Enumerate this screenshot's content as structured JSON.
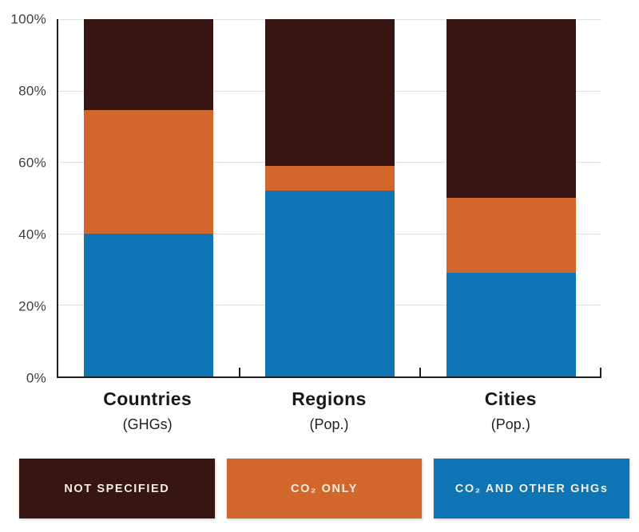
{
  "chart_data": {
    "type": "bar",
    "stacked": true,
    "title": "",
    "xlabel": "",
    "ylabel": "",
    "ylim": [
      0,
      100
    ],
    "yticks": [
      "0%",
      "20%",
      "40%",
      "60%",
      "80%",
      "100%"
    ],
    "grid": true,
    "legend_position": "bottom",
    "categories": [
      {
        "label": "Countries",
        "sublabel": "(GHGs)"
      },
      {
        "label": "Regions",
        "sublabel": "(Pop.)"
      },
      {
        "label": "Cities",
        "sublabel": "(Pop.)"
      }
    ],
    "series": [
      {
        "name": "CO₂ AND OTHER GHGs",
        "color": "#0e74b4",
        "values": [
          40,
          52,
          29
        ]
      },
      {
        "name": "CO₂ ONLY",
        "color": "#d2672b",
        "values": [
          34.5,
          7,
          21
        ]
      },
      {
        "name": "NOT SPECIFIED",
        "color": "#371513",
        "values": [
          25.5,
          41,
          50
        ]
      }
    ],
    "cumulative_tops_pct": {
      "Countries": [
        40,
        74.5,
        100
      ],
      "Regions": [
        52,
        59,
        100
      ],
      "Cities": [
        29,
        50,
        100
      ]
    },
    "legend_order": [
      "NOT SPECIFIED",
      "CO₂ ONLY",
      "CO₂ AND OTHER GHGs"
    ]
  },
  "style_colors": {
    "axis": "#1f1f1f",
    "gridline": "#e0e0e0",
    "tick_label": "#3f3f3f",
    "category_label": "#181818",
    "legend_text": "#f3ede2",
    "background": "#ffffff"
  }
}
